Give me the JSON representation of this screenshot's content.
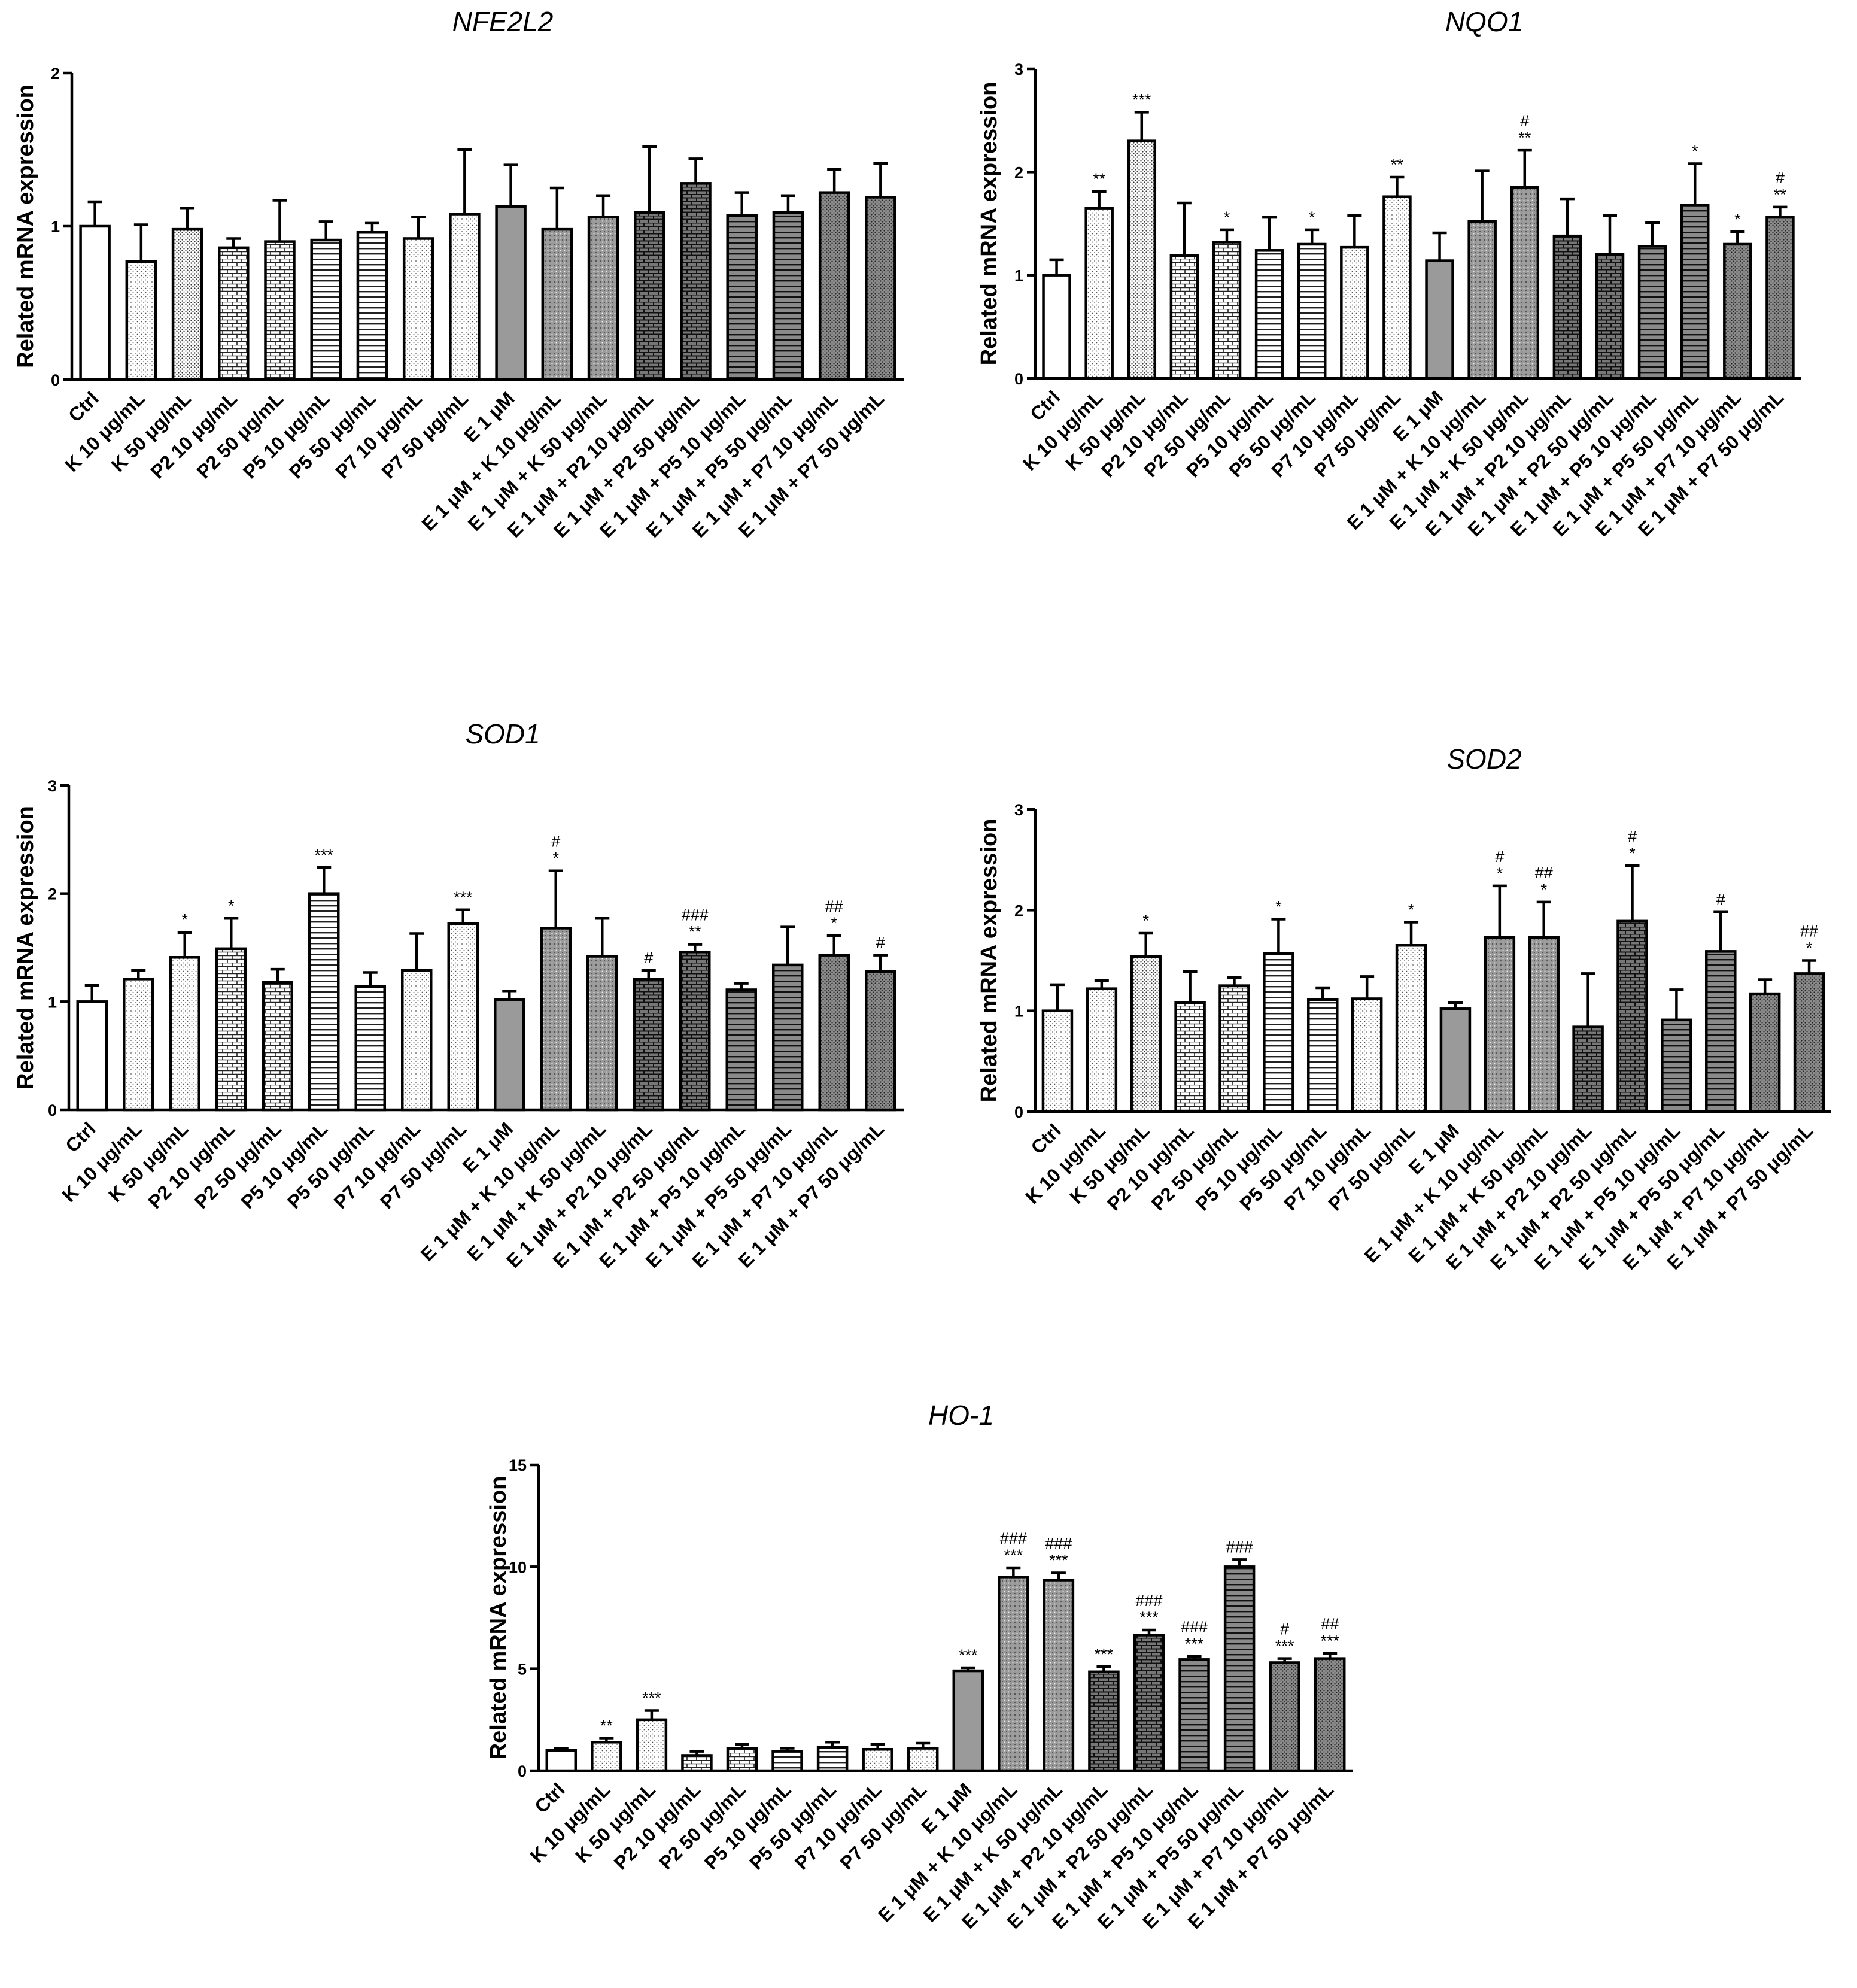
{
  "chart_data": [
    {
      "type": "bar",
      "title": "NFE2L2",
      "xlabel": "",
      "ylabel": "Related mRNA expression",
      "ylim": [
        0,
        2
      ],
      "yticks": [
        "0",
        "1",
        "2"
      ],
      "yticks_values": [
        0,
        1,
        2
      ],
      "categories": [
        "Ctrl",
        "K 10 μg/mL",
        "K 50 μg/mL",
        "P2 10 μg/mL",
        "P2 50 μg/mL",
        "P5 10 μg/mL",
        "P5 50 μg/mL",
        "P7 10 μg/mL",
        "P7 50 μg/mL",
        "E 1 μM",
        "E 1 μM + K 10 μg/mL",
        "E 1 μM + K 50 μg/mL",
        "E 1 μM + P2 10 μg/mL",
        "E 1 μM + P2 50 μg/mL",
        "E 1 μM + P5 10 μg/mL",
        "E 1 μM + P5 50 μg/mL",
        "E 1 μM + P7 10 μg/mL",
        "E 1 μM + P7 50 μg/mL"
      ],
      "values": [
        1.0,
        0.77,
        0.98,
        0.86,
        0.9,
        0.91,
        0.96,
        0.92,
        1.08,
        1.13,
        0.98,
        1.06,
        1.09,
        1.28,
        1.07,
        1.09,
        1.22,
        1.19
      ],
      "errors": [
        0.16,
        0.24,
        0.14,
        0.06,
        0.27,
        0.12,
        0.06,
        0.14,
        0.42,
        0.27,
        0.27,
        0.14,
        0.43,
        0.16,
        0.15,
        0.11,
        0.15,
        0.22
      ],
      "significance": [
        "",
        "",
        "",
        "",
        "",
        "",
        "",
        "",
        "",
        "",
        "",
        "",
        "",
        "",
        "",
        "",
        "",
        ""
      ]
    },
    {
      "type": "bar",
      "title": "NQO1",
      "xlabel": "",
      "ylabel": "Related mRNA expression",
      "ylim": [
        0,
        3
      ],
      "yticks": [
        "0",
        "1",
        "2",
        "3"
      ],
      "yticks_values": [
        0,
        1,
        2,
        3
      ],
      "categories": [
        "Ctrl",
        "K 10 μg/mL",
        "K 50 μg/mL",
        "P2 10 μg/mL",
        "P2 50 μg/mL",
        "P5 10 μg/mL",
        "P5 50 μg/mL",
        "P7 10 μg/mL",
        "P7 50 μg/mL",
        "E 1 μM",
        "E 1 μM + K 10 μg/mL",
        "E 1 μM + K 50 μg/mL",
        "E 1 μM + P2 10 μg/mL",
        "E 1 μM + P2 50 μg/mL",
        "E 1 μM + P5 10 μg/mL",
        "E 1 μM + P5 50 μg/mL",
        "E 1 μM + P7 10 μg/mL",
        "E 1 μM + P7 50 μg/mL"
      ],
      "values": [
        1.0,
        1.65,
        2.3,
        1.19,
        1.32,
        1.24,
        1.3,
        1.27,
        1.76,
        1.14,
        1.52,
        1.85,
        1.38,
        1.2,
        1.28,
        1.68,
        1.3,
        1.56
      ],
      "errors": [
        0.15,
        0.16,
        0.28,
        0.51,
        0.12,
        0.32,
        0.14,
        0.31,
        0.19,
        0.27,
        0.49,
        0.36,
        0.36,
        0.38,
        0.23,
        0.4,
        0.12,
        0.1
      ],
      "significance": [
        "",
        "**",
        "***",
        "",
        "*",
        "",
        "*",
        "",
        "**",
        "",
        "",
        "#\n**",
        "",
        "",
        "",
        "*",
        "*",
        "#\n**"
      ]
    },
    {
      "type": "bar",
      "title": "SOD1",
      "xlabel": "",
      "ylabel": "Related mRNA expression",
      "ylim": [
        0,
        3
      ],
      "yticks": [
        "0",
        "1",
        "2",
        "3"
      ],
      "yticks_values": [
        0,
        1,
        2,
        3
      ],
      "categories": [
        "Ctrl",
        "K 10 μg/mL",
        "K 50 μg/mL",
        "P2 10 μg/mL",
        "P2 50 μg/mL",
        "P5 10 μg/mL",
        "P5 50 μg/mL",
        "P7 10 μg/mL",
        "P7 50 μg/mL",
        "E 1 μM",
        "E 1 μM + K 10 μg/mL",
        "E 1 μM + K 50 μg/mL",
        "E 1 μM + P2 10 μg/mL",
        "E 1 μM + P2 50 μg/mL",
        "E 1 μM + P5 10 μg/mL",
        "E 1 μM + P5 50 μg/mL",
        "E 1 μM + P7 10 μg/mL",
        "E 1 μM + P7 50 μg/mL"
      ],
      "values": [
        1.0,
        1.21,
        1.41,
        1.49,
        1.18,
        2.0,
        1.14,
        1.29,
        1.72,
        1.02,
        1.68,
        1.42,
        1.21,
        1.46,
        1.11,
        1.34,
        1.43,
        1.28
      ],
      "errors": [
        0.15,
        0.08,
        0.23,
        0.28,
        0.12,
        0.24,
        0.13,
        0.34,
        0.13,
        0.08,
        0.53,
        0.35,
        0.08,
        0.07,
        0.06,
        0.35,
        0.18,
        0.15
      ],
      "significance": [
        "",
        "",
        "*",
        "*",
        "",
        "***",
        "",
        "",
        "***",
        "",
        "#\n*",
        "",
        "#",
        "###\n**",
        "",
        "",
        "##\n*",
        "#"
      ]
    },
    {
      "type": "bar",
      "title": "SOD2",
      "xlabel": "",
      "ylabel": "Related mRNA expression",
      "ylim": [
        0,
        3
      ],
      "yticks": [
        "0",
        "1",
        "2",
        "3"
      ],
      "yticks_values": [
        0,
        1,
        2,
        3
      ],
      "categories": [
        "Ctrl",
        "K 10 μg/mL",
        "K 50 μg/mL",
        "P2 10 μg/mL",
        "P2 50 μg/mL",
        "P5 10 μg/mL",
        "P5 50 μg/mL",
        "P7 10 μg/mL",
        "P7 50 μg/mL",
        "E 1 μM",
        "E 1 μM + K 10 μg/mL",
        "E 1 μM + K 50 μg/mL",
        "E 1 μM + P2 10 μg/mL",
        "E 1 μM + P2 50 μg/mL",
        "E 1 μM + P5 10 μg/mL",
        "E 1 μM + P5 50 μg/mL",
        "E 1 μM + P7 10 μg/mL",
        "E 1 μM + P7 50 μg/mL"
      ],
      "values": [
        1.0,
        1.22,
        1.54,
        1.08,
        1.25,
        1.57,
        1.11,
        1.12,
        1.65,
        1.02,
        1.73,
        1.73,
        0.84,
        1.89,
        0.91,
        1.59,
        1.17,
        1.37
      ],
      "errors": [
        0.26,
        0.08,
        0.23,
        0.31,
        0.08,
        0.34,
        0.12,
        0.22,
        0.23,
        0.06,
        0.51,
        0.35,
        0.53,
        0.55,
        0.3,
        0.39,
        0.14,
        0.13
      ],
      "significance": [
        "",
        "",
        "*",
        "",
        "",
        "*",
        "",
        "",
        "*",
        "",
        "#\n*",
        "##\n*",
        "",
        "#\n*",
        "",
        "#",
        "",
        "##\n*"
      ]
    },
    {
      "type": "bar",
      "title": "HO-1",
      "xlabel": "",
      "ylabel": "Related mRNA expression",
      "ylim": [
        0,
        15
      ],
      "yticks": [
        "0",
        "5",
        "10",
        "15"
      ],
      "yticks_values": [
        0,
        5,
        10,
        15
      ],
      "categories": [
        "Ctrl",
        "K 10 μg/mL",
        "K 50 μg/mL",
        "P2 10 μg/mL",
        "P2 50 μg/mL",
        "P5 10 μg/mL",
        "P5 50 μg/mL",
        "P7 10 μg/mL",
        "P7 50 μg/mL",
        "E 1 μM",
        "E 1 μM + K 10 μg/mL",
        "E 1 μM + K 50 μg/mL",
        "E 1 μM + P2 10 μg/mL",
        "E 1 μM + P2 50 μg/mL",
        "E 1 μM + P5 10 μg/mL",
        "E 1 μM + P5 50 μg/mL",
        "E 1 μM + P7 10 μg/mL",
        "E 1 μM + P7 50 μg/mL"
      ],
      "values": [
        1.0,
        1.4,
        2.5,
        0.75,
        1.1,
        0.95,
        1.15,
        1.05,
        1.1,
        4.9,
        9.5,
        9.35,
        4.85,
        6.65,
        5.45,
        10.0,
        5.3,
        5.5
      ],
      "errors": [
        0.1,
        0.2,
        0.45,
        0.2,
        0.2,
        0.15,
        0.25,
        0.25,
        0.25,
        0.15,
        0.45,
        0.35,
        0.25,
        0.25,
        0.15,
        0.35,
        0.2,
        0.25
      ],
      "significance": [
        "",
        "**",
        "***",
        "",
        "",
        "",
        "",
        "",
        "",
        "***",
        "###\n***",
        "###\n***",
        "***",
        "###\n***",
        "###\n***",
        "###",
        "#\n***",
        "##\n***"
      ]
    }
  ]
}
